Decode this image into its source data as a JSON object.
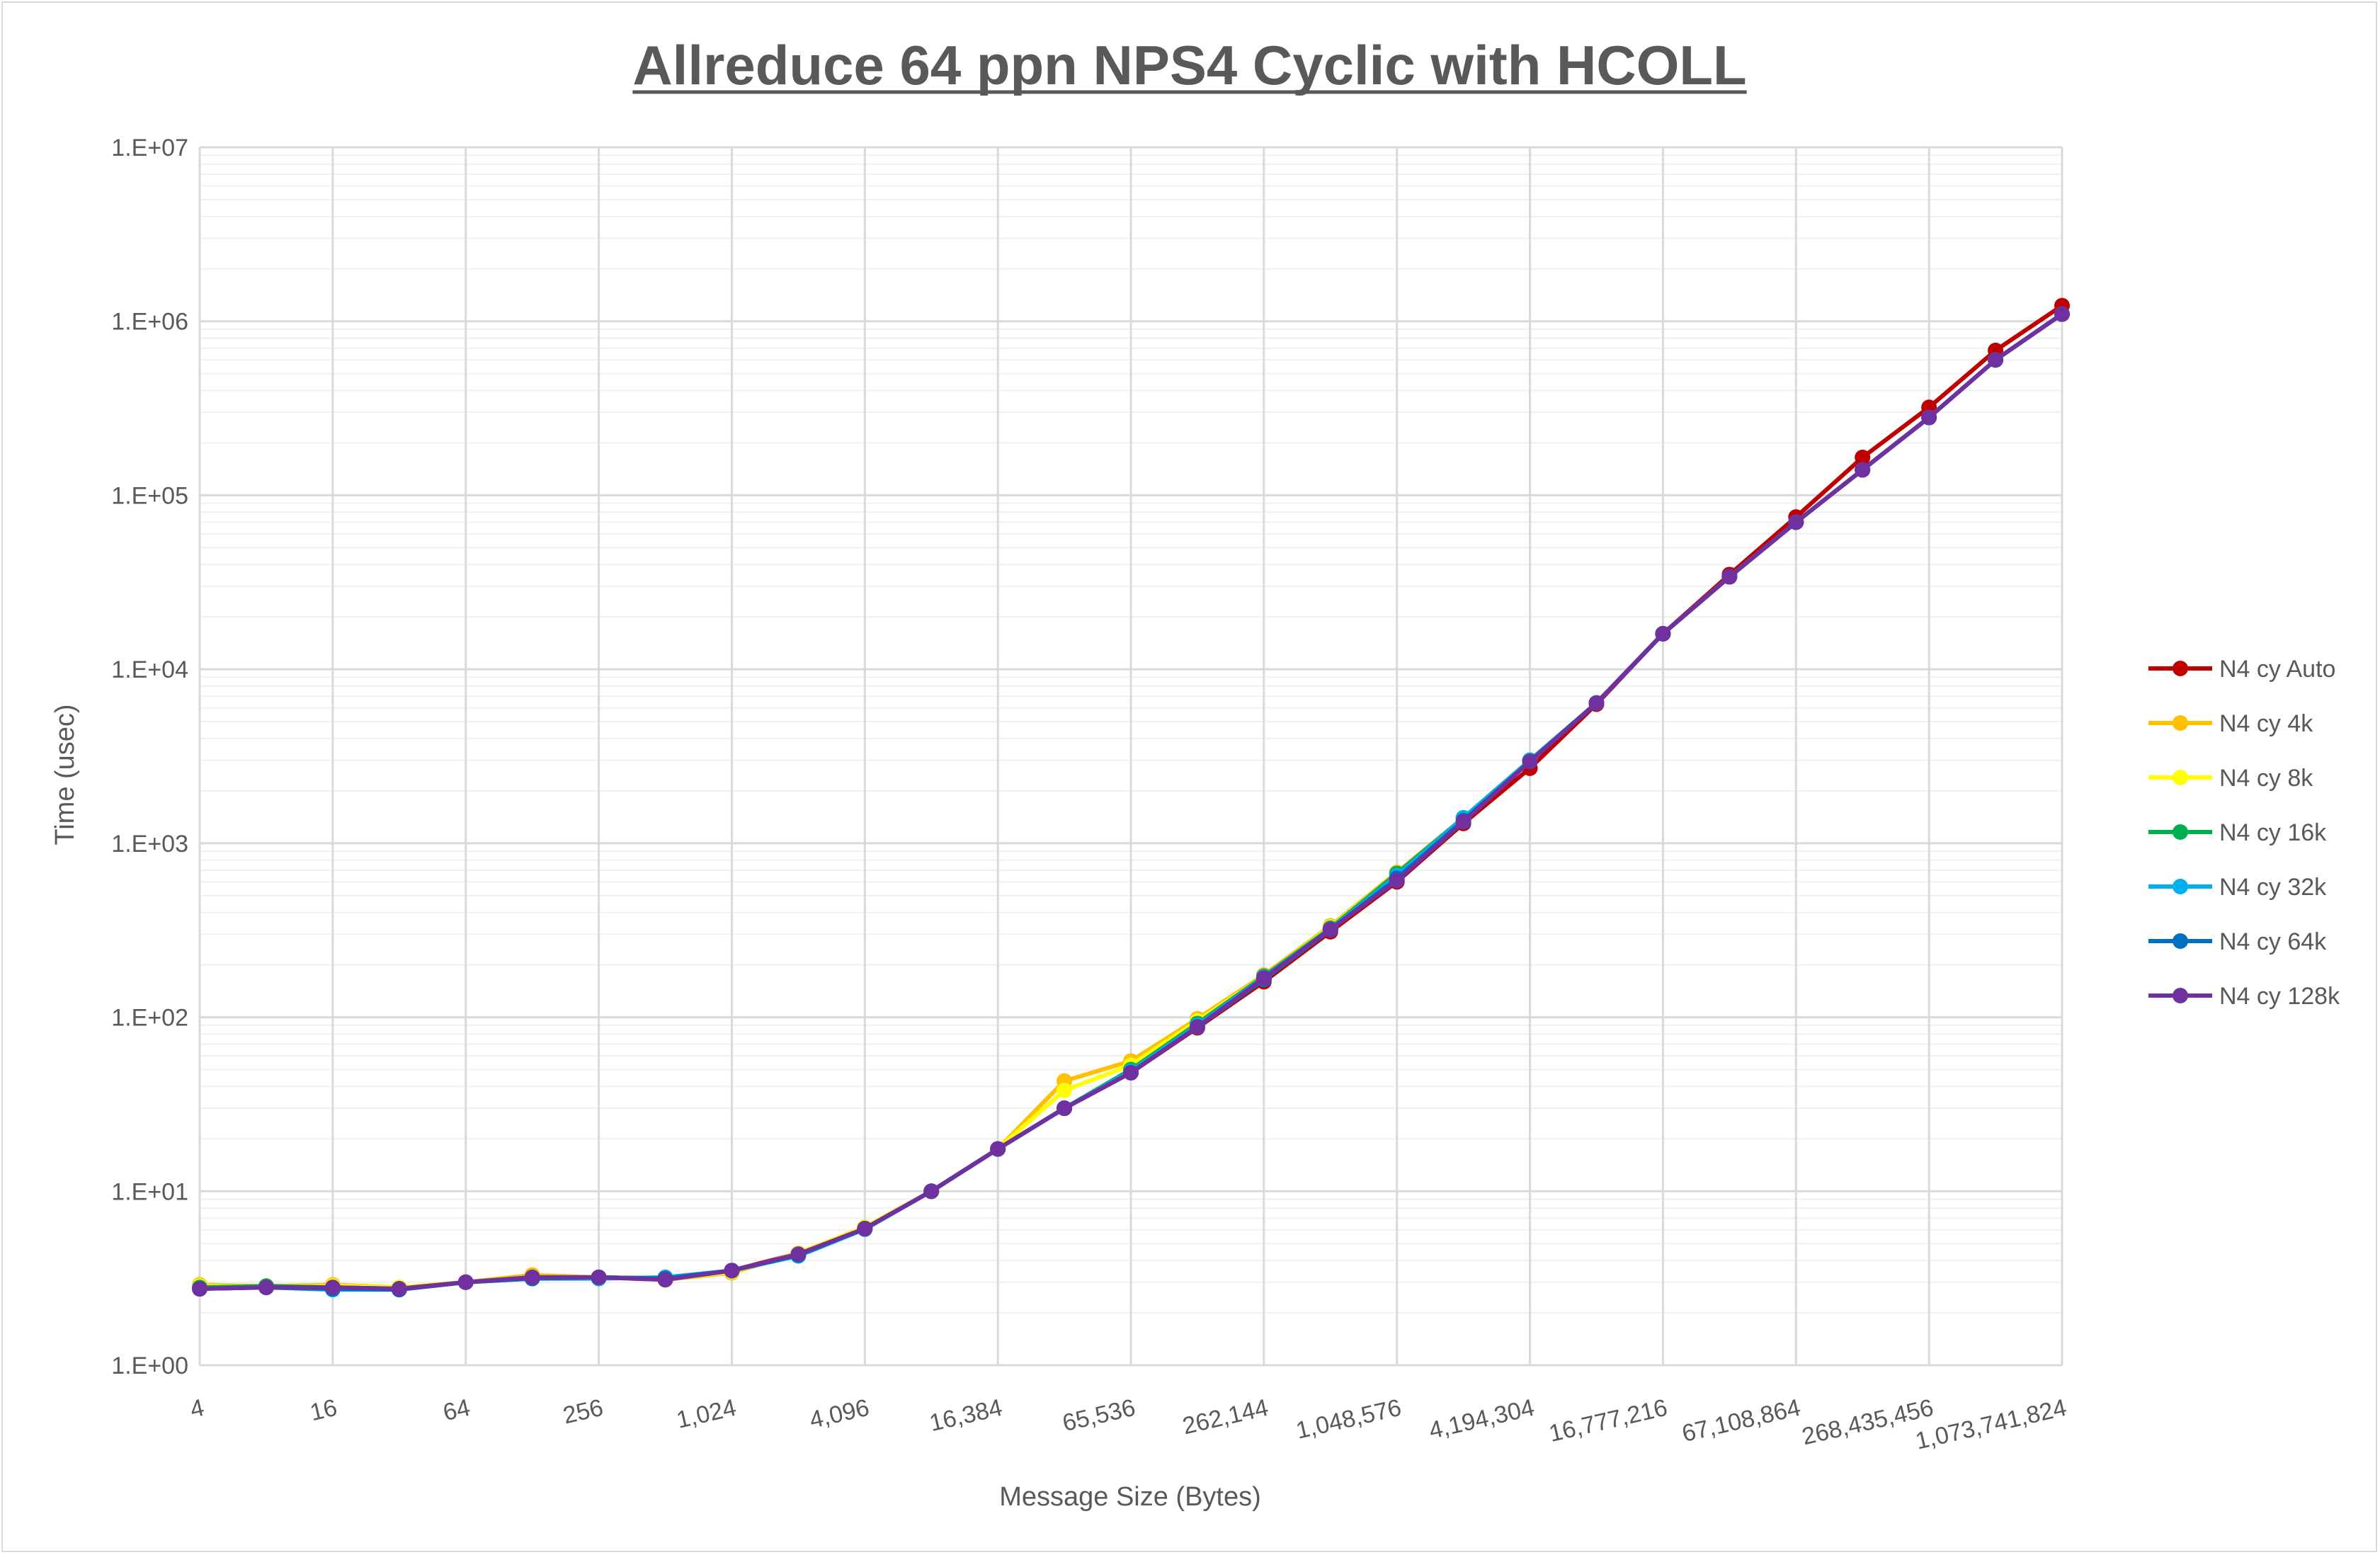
{
  "chart_data": {
    "type": "line",
    "title": "Allreduce 64 ppn NPS4 Cyclic with HCOLL",
    "xlabel": "Message Size (Bytes)",
    "ylabel": "Time (usec)",
    "x_scale": "log2",
    "y_scale": "log10",
    "ylim": [
      1,
      10000000
    ],
    "y_tick_labels": [
      "1.E+00",
      "1.E+01",
      "1.E+02",
      "1.E+03",
      "1.E+04",
      "1.E+05",
      "1.E+06",
      "1.E+07"
    ],
    "x_tick_labels": [
      "4",
      "16",
      "64",
      "256",
      "1,024",
      "4,096",
      "16,384",
      "65,536",
      "262,144",
      "1,048,576",
      "4,194,304",
      "16,777,216",
      "67,108,864",
      "268,435,456",
      "1,073,741,824"
    ],
    "grid": true,
    "legend_position": "right",
    "x": [
      4,
      8,
      16,
      32,
      64,
      128,
      256,
      512,
      1024,
      2048,
      4096,
      8192,
      16384,
      32768,
      65536,
      131072,
      262144,
      524288,
      1048576,
      2097152,
      4194304,
      8388608,
      16777216,
      33554432,
      67108864,
      134217728,
      268435456,
      536870912,
      1073741824
    ],
    "series": [
      {
        "name": "N4 cy Auto",
        "color": "#c00000",
        "values": [
          2.8,
          2.85,
          2.85,
          2.78,
          3.0,
          3.2,
          3.2,
          3.15,
          3.5,
          4.4,
          6.2,
          10.0,
          17.5,
          30,
          48,
          87,
          160,
          310,
          600,
          1300,
          2700,
          6300,
          16000,
          35000,
          75000,
          165000,
          320000,
          680000,
          1230000
        ]
      },
      {
        "name": "N4 cy 4k",
        "color": "#ffc000",
        "values": [
          2.9,
          2.85,
          2.9,
          2.8,
          3.0,
          3.3,
          3.2,
          3.1,
          3.4,
          4.4,
          6.2,
          10.0,
          17.5,
          43,
          56,
          98,
          175,
          335,
          680,
          1400,
          3000,
          6400,
          16000,
          34000,
          70000,
          140000,
          280000,
          600000,
          1100000
        ]
      },
      {
        "name": "N4 cy 8k",
        "color": "#ffff00",
        "values": [
          2.85,
          2.85,
          2.85,
          2.8,
          3.0,
          3.2,
          3.2,
          3.1,
          3.45,
          4.4,
          6.2,
          10.0,
          17.5,
          38,
          53,
          95,
          172,
          330,
          670,
          1400,
          3000,
          6400,
          16000,
          34000,
          70000,
          140000,
          280000,
          600000,
          1100000
        ]
      },
      {
        "name": "N4 cy 16k",
        "color": "#00b050",
        "values": [
          2.8,
          2.85,
          2.8,
          2.75,
          3.0,
          3.2,
          3.2,
          3.15,
          3.5,
          4.3,
          6.1,
          10.0,
          17.5,
          30,
          50,
          92,
          172,
          325,
          670,
          1400,
          3000,
          6400,
          16000,
          34000,
          70000,
          140000,
          280000,
          600000,
          1100000
        ]
      },
      {
        "name": "N4 cy 32k",
        "color": "#00b0f0",
        "values": [
          2.75,
          2.8,
          2.72,
          2.72,
          3.0,
          3.15,
          3.15,
          3.2,
          3.5,
          4.25,
          6.05,
          10.0,
          17.5,
          30,
          49,
          90,
          170,
          322,
          650,
          1400,
          3000,
          6400,
          16000,
          34000,
          70000,
          140000,
          280000,
          600000,
          1100000
        ]
      },
      {
        "name": "N4 cy 64k",
        "color": "#0070c0",
        "values": [
          2.75,
          2.8,
          2.75,
          2.72,
          3.0,
          3.15,
          3.2,
          3.15,
          3.5,
          4.3,
          6.1,
          10.0,
          17.5,
          30,
          48,
          88,
          165,
          318,
          630,
          1350,
          2950,
          6400,
          16000,
          34000,
          70000,
          140000,
          280000,
          600000,
          1100000
        ]
      },
      {
        "name": "N4 cy 128k",
        "color": "#7030a0",
        "values": [
          2.75,
          2.8,
          2.8,
          2.75,
          3.0,
          3.2,
          3.2,
          3.1,
          3.5,
          4.35,
          6.1,
          10.0,
          17.5,
          30,
          48,
          88,
          168,
          320,
          610,
          1330,
          2950,
          6400,
          16000,
          34000,
          70000,
          140000,
          280000,
          600000,
          1100000
        ]
      }
    ]
  }
}
